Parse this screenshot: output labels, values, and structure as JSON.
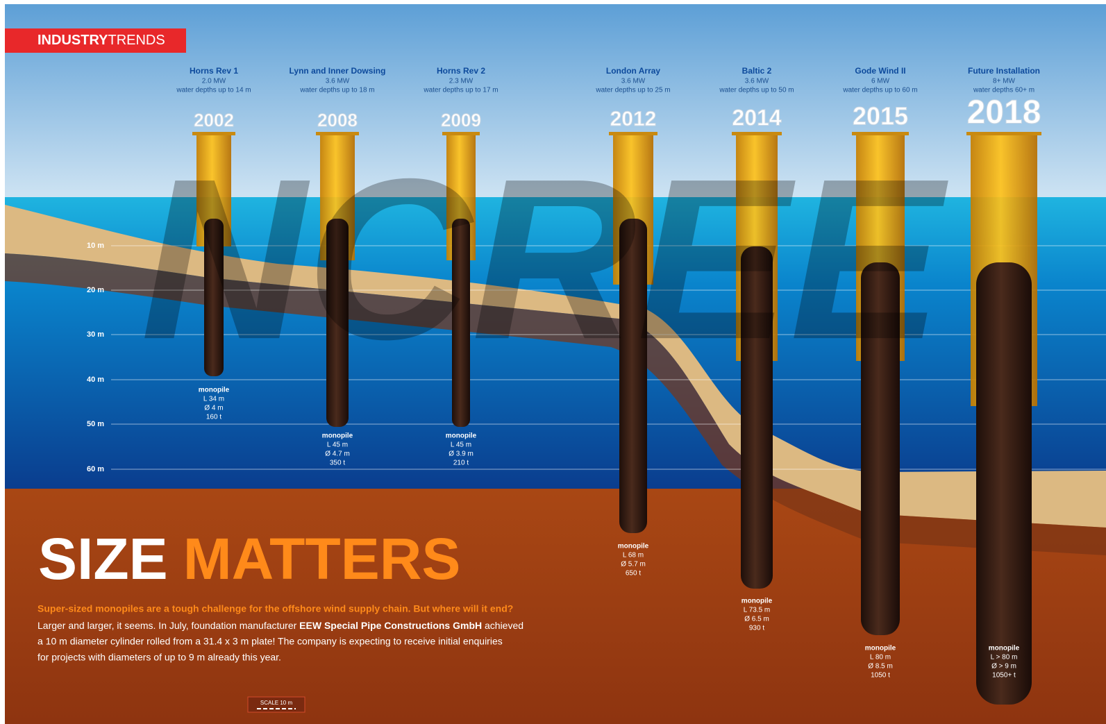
{
  "header": {
    "label_bold": "INDUSTRY",
    "label_light": "TRENDS"
  },
  "watermark": "NCREE",
  "depth_scale": [
    "10 m",
    "20 m",
    "30 m",
    "40 m",
    "50 m",
    "60 m"
  ],
  "installations": [
    {
      "name": "Horns Rev 1",
      "power": "2.0 MW",
      "depth": "water depths up to 14 m",
      "year": "2002",
      "monopile": [
        "monopile",
        "L 34 m",
        "Ø 4 m",
        "160 t"
      ]
    },
    {
      "name": "Lynn and Inner Dowsing",
      "power": "3.6 MW",
      "depth": "water depths up to 18 m",
      "year": "2008",
      "monopile": [
        "monopile",
        "L 45 m",
        "Ø 4.7 m",
        "350 t"
      ]
    },
    {
      "name": "Horns Rev 2",
      "power": "2.3 MW",
      "depth": "water depths up to 17 m",
      "year": "2009",
      "monopile": [
        "monopile",
        "L 45 m",
        "Ø 3.9 m",
        "210 t"
      ]
    },
    {
      "name": "London Array",
      "power": "3.6 MW",
      "depth": "water depths up to 25 m",
      "year": "2012",
      "monopile": [
        "monopile",
        "L 68 m",
        "Ø 5.7 m",
        "650 t"
      ]
    },
    {
      "name": "Baltic 2",
      "power": "3.6 MW",
      "depth": "water depths up to 50 m",
      "year": "2014",
      "monopile": [
        "monopile",
        "L 73.5 m",
        "Ø 6.5 m",
        "930 t"
      ]
    },
    {
      "name": "Gode Wind II",
      "power": "6 MW",
      "depth": "water depths up to 60 m",
      "year": "2015",
      "monopile": [
        "monopile",
        "L 80 m",
        "Ø 8.5 m",
        "1050 t"
      ]
    },
    {
      "name": "Future Installation",
      "power": "8+ MW",
      "depth": "water depths 60+ m",
      "year": "2018",
      "monopile": [
        "monopile",
        "L > 80 m",
        "Ø > 9 m",
        "1050+ t"
      ]
    }
  ],
  "title": {
    "part1": "SIZE",
    "part2": "MATTERS"
  },
  "subtitle": "Super-sized monopiles are a tough challenge for the offshore wind supply chain. But where will it end?",
  "body": {
    "line1_start": "Larger and larger, it seems. In July, foundation manufacturer ",
    "line1_bold": "EEW Special Pipe Constructions GmbH",
    "line1_end": " achieved",
    "line2": "a 10 m diameter cylinder rolled from a 31.4 x 3 m plate! The company is expecting to receive initial enquiries",
    "line3": "for projects with diameters of up to 9 m already this year."
  },
  "scale_label": "SCALE 10 m"
}
